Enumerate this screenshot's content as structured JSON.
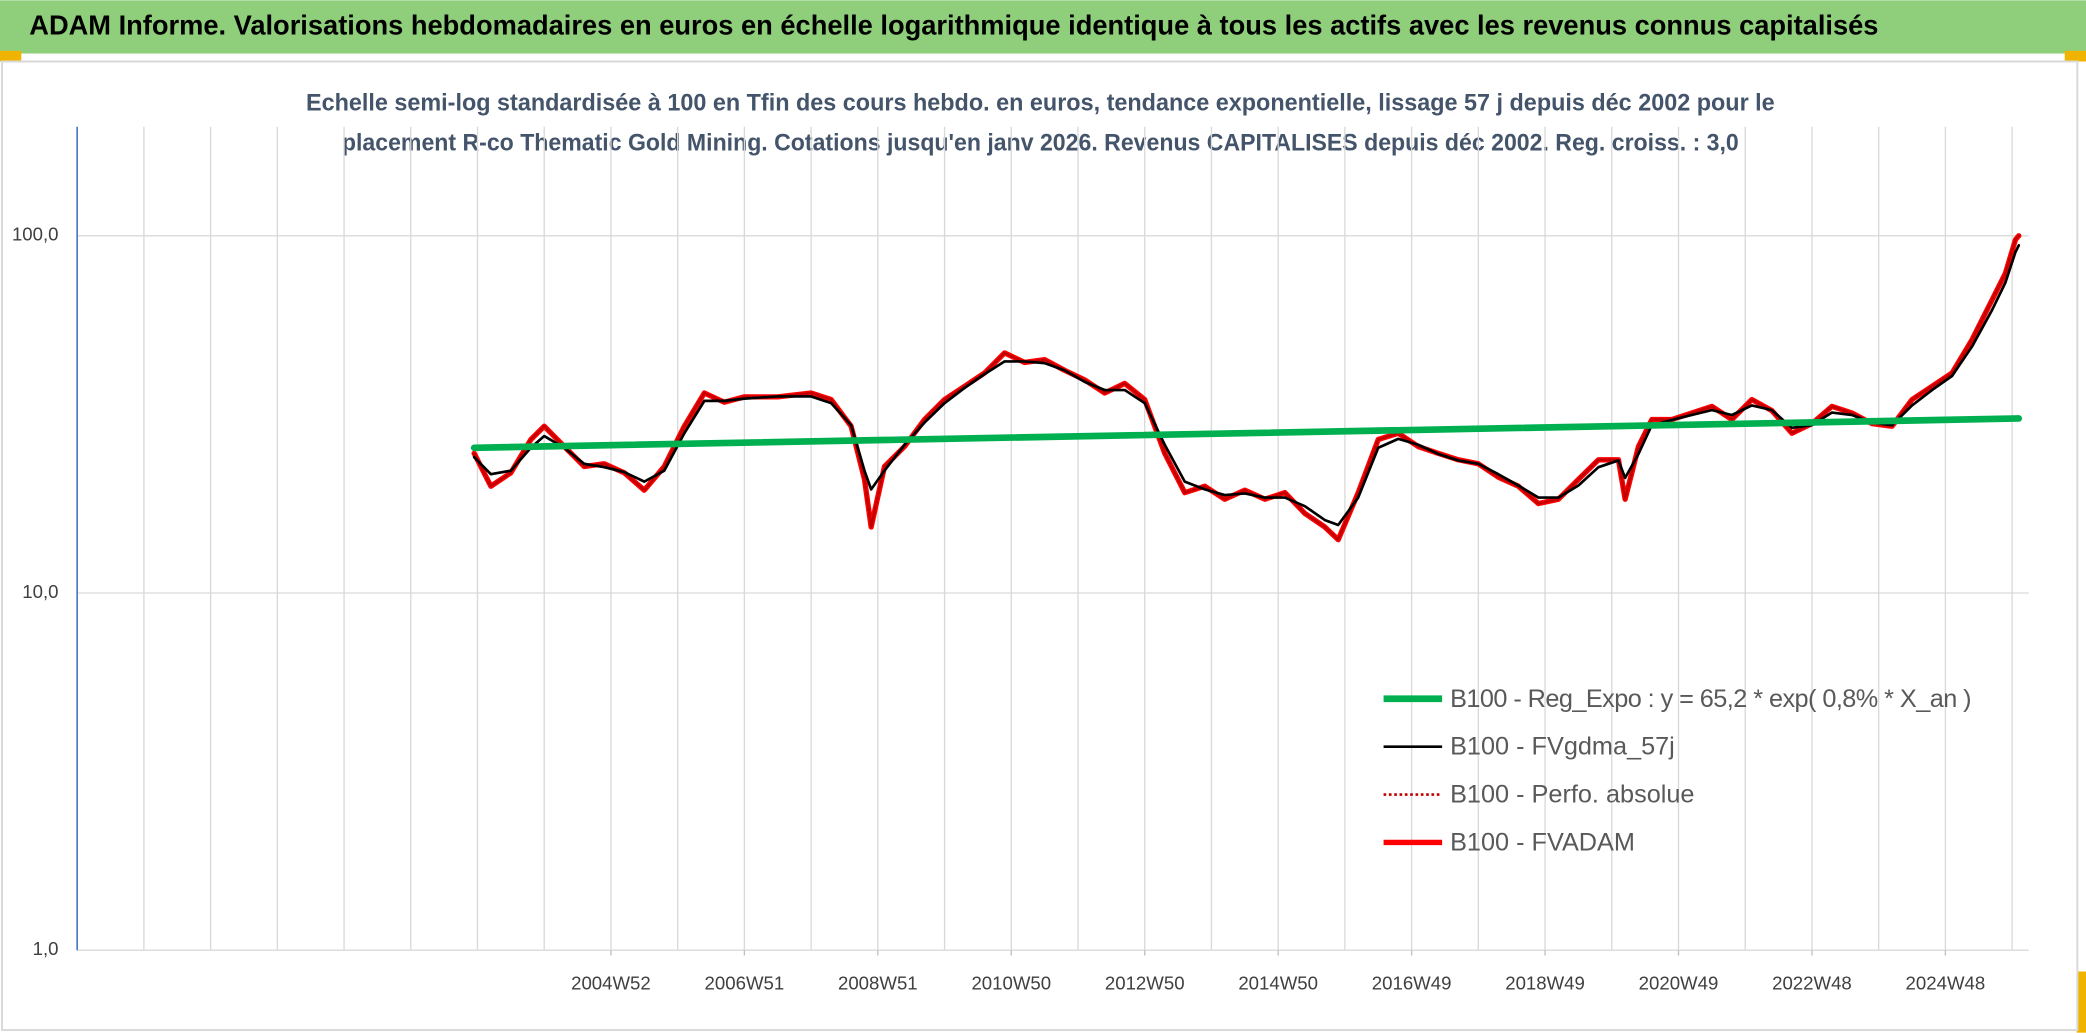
{
  "chart_data": {
    "type": "line",
    "title": "ADAM Informe. Valorisations hebdomadaires en euros en échelle logarithmique identique à tous les actifs avec les revenus connus capitalisés",
    "subtitle": [
      "Echelle semi-log standardisée à 100 en Tfin des cours hebdo. en euros, tendance exponentielle, lissage 57 j depuis déc 2002 pour le",
      "placement R-co Thematic Gold Mining. Cotations jusqu'en janv 2026. Revenus CAPITALISES depuis déc 2002. Reg. croiss. : 3,0"
    ],
    "log_scale": true,
    "grid": true,
    "legend": "lower right",
    "ylim": [
      1,
      202
    ],
    "yticks": [
      {
        "value": 1,
        "label": "1,0"
      },
      {
        "value": 10,
        "label": "10,0"
      },
      {
        "value": 100,
        "label": "100,0"
      }
    ],
    "xlim": [
      1997,
      2026.25
    ],
    "xgrid": [
      1998,
      1999,
      2000,
      2001,
      2002,
      2003,
      2004,
      2005,
      2006,
      2007,
      2008,
      2009,
      2010,
      2011,
      2012,
      2013,
      2014,
      2015,
      2016,
      2017,
      2018,
      2019,
      2020,
      2021,
      2022,
      2023,
      2024,
      2025,
      2026
    ],
    "xticks": [
      {
        "value": 2005,
        "label": "2004W52"
      },
      {
        "value": 2007,
        "label": "2006W51"
      },
      {
        "value": 2009,
        "label": "2008W51"
      },
      {
        "value": 2011,
        "label": "2010W50"
      },
      {
        "value": 2013,
        "label": "2012W50"
      },
      {
        "value": 2015,
        "label": "2014W50"
      },
      {
        "value": 2017,
        "label": "2016W49"
      },
      {
        "value": 2019,
        "label": "2018W49"
      },
      {
        "value": 2021,
        "label": "2020W49"
      },
      {
        "value": 2023,
        "label": "2022W48"
      },
      {
        "value": 2025,
        "label": "2024W48"
      }
    ],
    "x": [
      2002.95,
      2003.2,
      2003.5,
      2003.8,
      2004.0,
      2004.3,
      2004.6,
      2004.9,
      2005.2,
      2005.5,
      2005.8,
      2006.1,
      2006.4,
      2006.7,
      2007.0,
      2007.5,
      2008.0,
      2008.3,
      2008.6,
      2008.8,
      2008.9,
      2009.1,
      2009.4,
      2009.7,
      2010.0,
      2010.3,
      2010.6,
      2010.9,
      2011.2,
      2011.5,
      2011.8,
      2012.1,
      2012.4,
      2012.7,
      2013.0,
      2013.3,
      2013.6,
      2013.9,
      2014.2,
      2014.5,
      2014.8,
      2015.1,
      2015.4,
      2015.7,
      2015.9,
      2016.2,
      2016.5,
      2016.8,
      2017.1,
      2017.4,
      2017.7,
      2018.0,
      2018.3,
      2018.6,
      2018.9,
      2019.2,
      2019.5,
      2019.8,
      2020.1,
      2020.2,
      2020.4,
      2020.6,
      2020.9,
      2021.2,
      2021.5,
      2021.8,
      2022.1,
      2022.4,
      2022.7,
      2023.0,
      2023.3,
      2023.6,
      2023.9,
      2024.2,
      2024.5,
      2024.8,
      2025.1,
      2025.4,
      2025.7,
      2025.9,
      2026.05,
      2026.1
    ],
    "series": [
      {
        "name": "B100 - Reg_Expo : y = 65,2 * exp( 0,8% *  X_an )",
        "color": "#00b050",
        "style": "solid",
        "width": 5,
        "x": [
          2002.95,
          2026.1
        ],
        "values": [
          25.5,
          30.8
        ]
      },
      {
        "name": "B100 - FVgdma_57j",
        "color": "#000000",
        "style": "solid",
        "width": 2,
        "values": [
          24.0,
          21.5,
          22.0,
          25.5,
          27.5,
          25.5,
          23.0,
          22.5,
          21.8,
          20.5,
          22.0,
          28.0,
          34.5,
          34.5,
          35.0,
          35.5,
          35.5,
          34.0,
          29.5,
          22.0,
          19.5,
          22.0,
          26.0,
          30.0,
          34.0,
          37.5,
          41.0,
          44.5,
          44.5,
          44.0,
          42.0,
          39.0,
          37.0,
          37.0,
          34.0,
          26.0,
          20.5,
          19.5,
          18.8,
          19.0,
          18.5,
          18.5,
          17.5,
          16.0,
          15.5,
          18.5,
          25.5,
          27.0,
          26.0,
          24.5,
          23.5,
          23.0,
          21.5,
          20.0,
          18.5,
          18.5,
          20.0,
          22.5,
          23.5,
          21.0,
          24.5,
          29.5,
          30.5,
          31.5,
          32.5,
          31.5,
          33.5,
          32.5,
          29.0,
          29.5,
          32.0,
          31.5,
          30.0,
          29.5,
          33.5,
          37.0,
          40.5,
          49.0,
          62.0,
          74.0,
          90.0,
          94.0
        ]
      },
      {
        "name": "B100 - Perfo. absolue",
        "color": "#c00000",
        "style": "dotted",
        "width": 2,
        "values": [
          24.6,
          19.9,
          21.7,
          26.9,
          29.3,
          25.7,
          22.6,
          23.0,
          21.7,
          19.4,
          22.6,
          29.3,
          36.3,
          34.2,
          35.4,
          35.4,
          36.3,
          34.8,
          29.3,
          20.8,
          15.3,
          22.6,
          25.7,
          30.6,
          34.8,
          37.9,
          41.3,
          47.0,
          44.2,
          45.0,
          42.0,
          39.5,
          36.3,
          38.6,
          34.8,
          24.6,
          19.1,
          19.9,
          18.3,
          19.4,
          18.3,
          19.1,
          16.7,
          15.3,
          14.1,
          19.1,
          26.9,
          28.0,
          25.7,
          24.6,
          23.6,
          23.0,
          21.1,
          19.9,
          17.8,
          18.3,
          20.8,
          23.6,
          23.6,
          18.3,
          25.7,
          30.6,
          30.6,
          31.9,
          33.3,
          30.6,
          34.8,
          32.4,
          28.0,
          29.8,
          33.3,
          31.9,
          29.8,
          29.3,
          34.8,
          37.9,
          41.3,
          51.2,
          66.2,
          78.6,
          97.5,
          100
        ]
      },
      {
        "name": "B100 - FVADAM",
        "color": "#ff0000",
        "style": "solid",
        "width": 4,
        "values": [
          24.6,
          19.9,
          21.7,
          26.9,
          29.3,
          25.7,
          22.6,
          23.0,
          21.7,
          19.4,
          22.6,
          29.3,
          36.3,
          34.2,
          35.4,
          35.4,
          36.3,
          34.8,
          29.3,
          20.8,
          15.3,
          22.6,
          25.7,
          30.6,
          34.8,
          37.9,
          41.3,
          47.0,
          44.2,
          45.0,
          42.0,
          39.5,
          36.3,
          38.6,
          34.8,
          24.6,
          19.1,
          19.9,
          18.3,
          19.4,
          18.3,
          19.1,
          16.7,
          15.3,
          14.1,
          19.1,
          26.9,
          28.0,
          25.7,
          24.6,
          23.6,
          23.0,
          21.1,
          19.9,
          17.8,
          18.3,
          20.8,
          23.6,
          23.6,
          18.3,
          25.7,
          30.6,
          30.6,
          31.9,
          33.3,
          30.6,
          34.8,
          32.4,
          28.0,
          29.8,
          33.3,
          31.9,
          29.8,
          29.3,
          34.8,
          37.9,
          41.3,
          51.2,
          66.2,
          78.6,
          97.5,
          100
        ]
      }
    ]
  }
}
